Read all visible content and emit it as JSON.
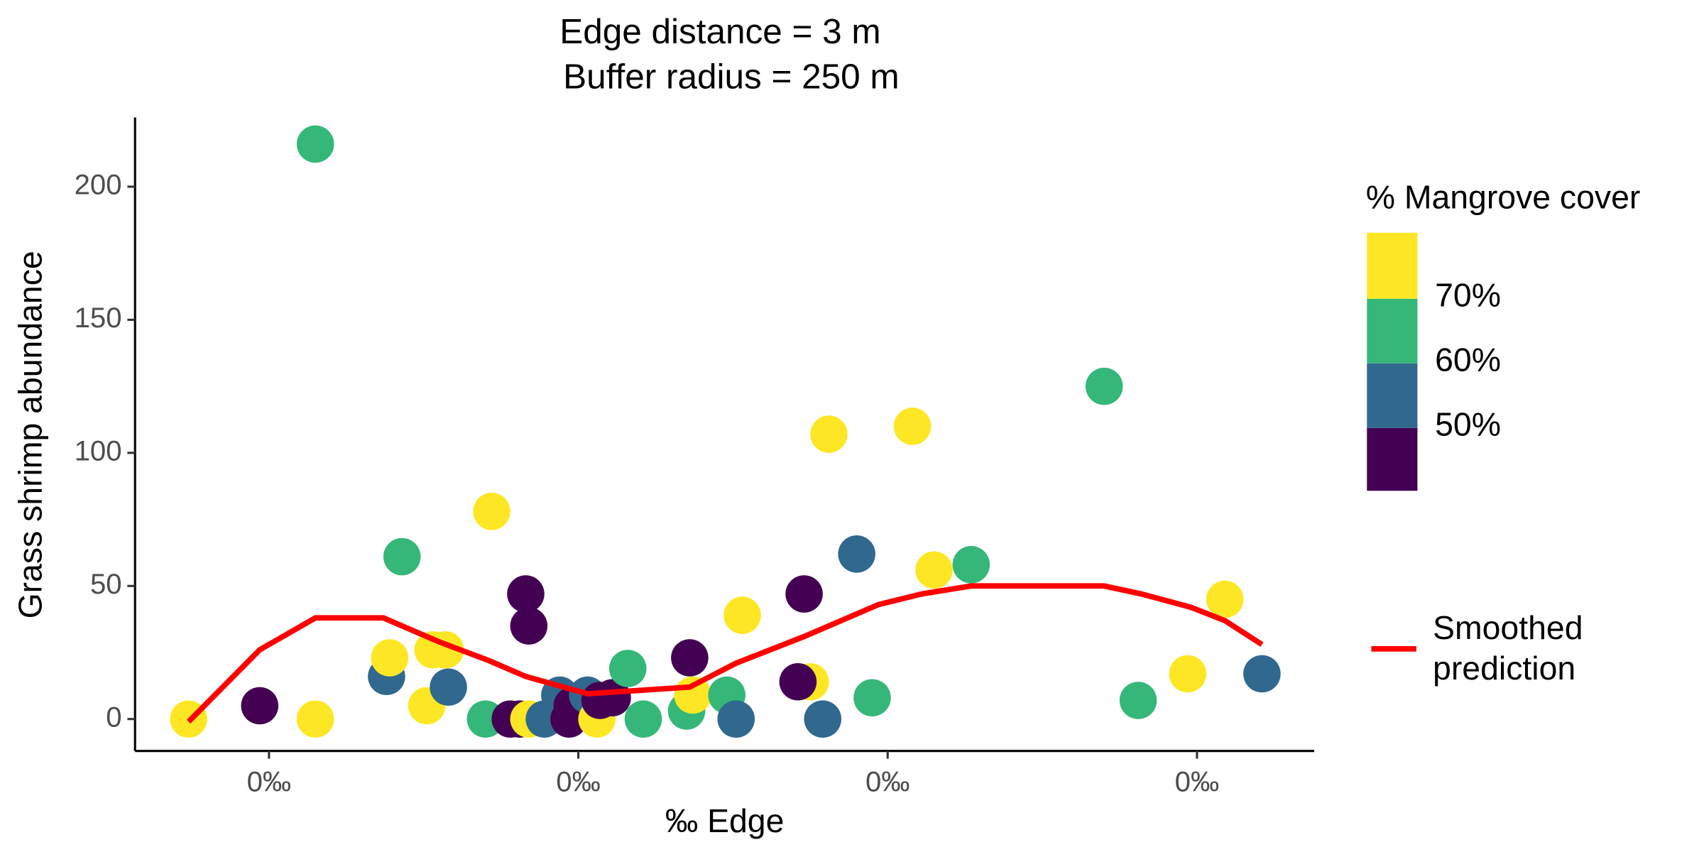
{
  "chart_data": {
    "type": "scatter",
    "title": "Edge distance = 3 m",
    "subtitle": "Buffer radius = 250 m",
    "x_label": "‰ Edge",
    "y_label": "Grass shrimp abundance",
    "xlim": [
      0.0567,
      0.4379
    ],
    "xticks": [
      {
        "value": 0.1,
        "label": "0‰"
      },
      {
        "value": 0.2,
        "label": "0‰"
      },
      {
        "value": 0.3,
        "label": "0‰"
      },
      {
        "value": 0.4,
        "label": "0‰"
      }
    ],
    "ylim": [
      -12,
      226
    ],
    "yticks": [
      0,
      50,
      100,
      150,
      200
    ],
    "points": {
      "x": [
        0.074,
        0.097,
        0.115,
        0.115,
        0.138,
        0.139,
        0.143,
        0.151,
        0.153,
        0.157,
        0.158,
        0.172,
        0.17,
        0.178,
        0.181,
        0.183,
        0.184,
        0.184,
        0.189,
        0.194,
        0.197,
        0.198,
        0.203,
        0.206,
        0.207,
        0.211,
        0.216,
        0.221,
        0.235,
        0.237,
        0.236,
        0.248,
        0.251,
        0.253,
        0.273,
        0.275,
        0.271,
        0.279,
        0.281,
        0.29,
        0.295,
        0.308,
        0.315,
        0.327,
        0.37,
        0.381,
        0.397,
        0.409,
        0.421
      ],
      "values": [
        0,
        5,
        216,
        0,
        16,
        23,
        61,
        5,
        26,
        26,
        12,
        78,
        0,
        0,
        0,
        47,
        35,
        0,
        0,
        9,
        0,
        5,
        9,
        0,
        7,
        8,
        19,
        0,
        3,
        9,
        23,
        9,
        0,
        39,
        47,
        14,
        14,
        0,
        107,
        62,
        8,
        110,
        56,
        58,
        125,
        7,
        17,
        45,
        17
      ],
      "cover": [
        75,
        45,
        65,
        75,
        55,
        75,
        65,
        75,
        75,
        75,
        55,
        75,
        65,
        45,
        45,
        45,
        45,
        75,
        55,
        55,
        45,
        45,
        55,
        75,
        45,
        45,
        65,
        65,
        65,
        75,
        45,
        65,
        55,
        75,
        45,
        75,
        45,
        55,
        75,
        55,
        65,
        75,
        75,
        65,
        65,
        65,
        75,
        75,
        55
      ]
    },
    "colorbar": {
      "title": "% Mangrove cover",
      "lim": [
        40.3,
        80.2
      ],
      "ticks": [
        {
          "value": 50,
          "label": "50%"
        },
        {
          "value": 60,
          "label": "60%"
        },
        {
          "value": 70,
          "label": "70%"
        }
      ],
      "colors": [
        "#440154",
        "#31688e",
        "#35b779",
        "#fde725"
      ]
    },
    "smooth": {
      "name": "Smoothed prediction",
      "color": "#ff0000",
      "x": [
        0.074,
        0.097,
        0.115,
        0.137,
        0.155,
        0.171,
        0.183,
        0.203,
        0.236,
        0.251,
        0.273,
        0.297,
        0.311,
        0.327,
        0.37,
        0.382,
        0.398,
        0.409,
        0.421
      ],
      "values": [
        -1,
        26,
        38,
        38,
        29,
        22,
        16,
        9.5,
        12,
        21,
        31,
        43,
        47,
        50,
        50,
        47,
        42,
        37,
        28
      ]
    }
  }
}
